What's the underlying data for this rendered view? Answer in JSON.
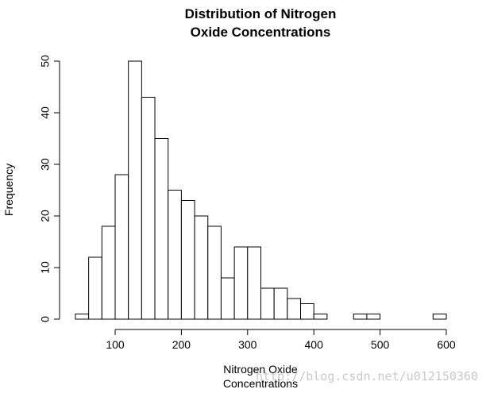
{
  "chart_data": {
    "type": "bar",
    "title_lines": [
      "Distribution of Nitrogen",
      "Oxide Concentrations"
    ],
    "xlabel_lines": [
      "Nitrogen Oxide",
      "Concentrations"
    ],
    "ylabel": "Frequency",
    "bin_width": 20,
    "bins": [
      {
        "start": 40,
        "end": 60,
        "count": 1
      },
      {
        "start": 60,
        "end": 80,
        "count": 12
      },
      {
        "start": 80,
        "end": 100,
        "count": 18
      },
      {
        "start": 100,
        "end": 120,
        "count": 28
      },
      {
        "start": 120,
        "end": 140,
        "count": 50
      },
      {
        "start": 140,
        "end": 160,
        "count": 43
      },
      {
        "start": 160,
        "end": 180,
        "count": 35
      },
      {
        "start": 180,
        "end": 200,
        "count": 25
      },
      {
        "start": 200,
        "end": 220,
        "count": 23
      },
      {
        "start": 220,
        "end": 240,
        "count": 20
      },
      {
        "start": 240,
        "end": 260,
        "count": 18
      },
      {
        "start": 260,
        "end": 280,
        "count": 8
      },
      {
        "start": 280,
        "end": 300,
        "count": 14
      },
      {
        "start": 300,
        "end": 320,
        "count": 14
      },
      {
        "start": 320,
        "end": 340,
        "count": 6
      },
      {
        "start": 340,
        "end": 360,
        "count": 6
      },
      {
        "start": 360,
        "end": 380,
        "count": 4
      },
      {
        "start": 380,
        "end": 400,
        "count": 3
      },
      {
        "start": 400,
        "end": 420,
        "count": 1
      },
      {
        "start": 420,
        "end": 440,
        "count": 0
      },
      {
        "start": 440,
        "end": 460,
        "count": 0
      },
      {
        "start": 460,
        "end": 480,
        "count": 1
      },
      {
        "start": 480,
        "end": 500,
        "count": 1
      },
      {
        "start": 500,
        "end": 520,
        "count": 0
      },
      {
        "start": 520,
        "end": 540,
        "count": 0
      },
      {
        "start": 540,
        "end": 560,
        "count": 0
      },
      {
        "start": 560,
        "end": 580,
        "count": 0
      },
      {
        "start": 580,
        "end": 600,
        "count": 1
      }
    ],
    "x_ticks": [
      100,
      200,
      300,
      400,
      500,
      600
    ],
    "x_tick_labels": [
      "100",
      "200",
      "300",
      "400",
      "500",
      "600"
    ],
    "y_ticks": [
      0,
      10,
      20,
      30,
      40,
      50
    ],
    "y_tick_labels": [
      "0",
      "10",
      "20",
      "30",
      "40",
      "50"
    ],
    "xlim": [
      100,
      600
    ],
    "ylim": [
      0,
      50
    ],
    "grid": false
  },
  "watermark": "http://blog.csdn.net/u012150360"
}
